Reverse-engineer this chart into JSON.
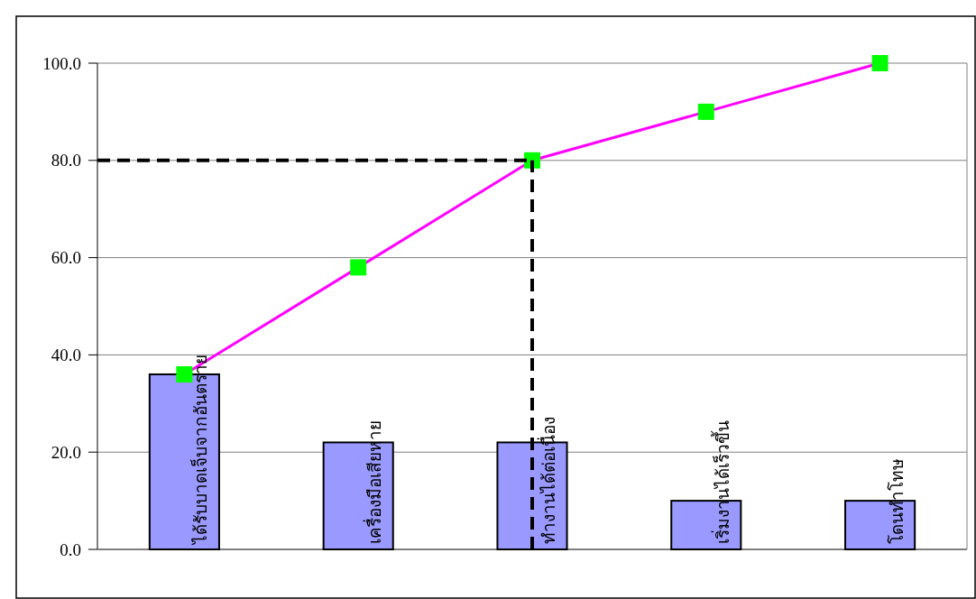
{
  "chart_data": {
    "type": "bar",
    "categories": [
      "ได้รับบาดเจ็บจากอันตราย",
      "เครื่องมือเสียหาย",
      "ทำงานได้ต่อเนื่อง",
      "เริ่มงานได้เร็วขึ้น",
      "โดนทำโทษ"
    ],
    "series": [
      {
        "color": "#9999ff",
        "values": [
          36,
          22,
          22,
          10,
          10
        ]
      },
      {
        "type": "line",
        "color": "#ff00ff",
        "values": [
          36,
          58,
          80,
          90,
          100
        ]
      }
    ],
    "marker": "square",
    "ylim": [
      0,
      100
    ],
    "yticks": [
      {
        "value": 0,
        "label": "0.0"
      },
      {
        "value": 20,
        "label": "20.0"
      },
      {
        "value": 40,
        "label": "40.0"
      },
      {
        "value": 60,
        "label": "60.0"
      },
      {
        "value": 80,
        "label": "80.0"
      },
      {
        "value": 100,
        "label": "100.0"
      }
    ],
    "grid": "y",
    "ref_lines": [
      {
        "axis": "y",
        "value": 80,
        "color": "#000000",
        "line_style": "dashed"
      },
      {
        "axis": "x",
        "value": "ทำงานได้ต่อเนื่อง",
        "color": "#000000",
        "line_style": "dashed"
      }
    ]
  }
}
